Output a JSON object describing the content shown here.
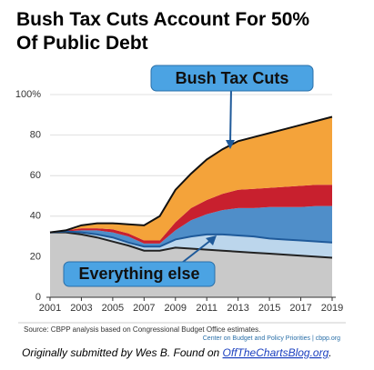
{
  "chart_data": {
    "type": "stacked_area",
    "title_lines": [
      "Bush Tax Cuts Account For 50%",
      "Of Public Debt"
    ],
    "x": [
      2001,
      2002,
      2003,
      2004,
      2005,
      2006,
      2007,
      2008,
      2009,
      2010,
      2011,
      2012,
      2013,
      2014,
      2015,
      2016,
      2017,
      2018,
      2019
    ],
    "xlim": [
      2001,
      2019
    ],
    "xticks": [
      2001,
      2003,
      2005,
      2007,
      2009,
      2011,
      2013,
      2015,
      2017,
      2019
    ],
    "ylim": [
      0,
      100
    ],
    "yticks": [
      0,
      20,
      40,
      60,
      {
        "value": 80,
        "label": "80"
      },
      {
        "value": 100,
        "label": "100%"
      }
    ],
    "grid": true,
    "series": [
      {
        "color": "#c9c9c9",
        "line_color": "#222222",
        "values": [
          32,
          32,
          31,
          29.5,
          27.5,
          25.5,
          23,
          23,
          24.5,
          24,
          23.5,
          23,
          22.5,
          22,
          21.5,
          21,
          20.5,
          20,
          19.5
        ]
      },
      {
        "color": "#bcd6ec",
        "line_color": "#1f5a9a",
        "values": [
          0,
          0.5,
          1,
          1.5,
          2,
          1.5,
          2,
          2,
          4,
          6,
          7.5,
          8,
          8,
          8,
          7.5,
          7.5,
          7.5,
          7.5,
          7.5
        ]
      },
      {
        "color": "#4f8ec9",
        "values": [
          0,
          0,
          1,
          2,
          2.5,
          3,
          1.5,
          1.5,
          4.5,
          8,
          10,
          12,
          13.5,
          14,
          15.5,
          16,
          16.5,
          17.5,
          18
        ]
      },
      {
        "color": "#c8202e",
        "values": [
          0,
          0.5,
          1,
          1,
          1.5,
          1.5,
          1.5,
          1.5,
          4,
          6,
          7,
          8,
          9,
          9.5,
          9.5,
          10,
          10.5,
          10.5,
          10.5
        ]
      },
      {
        "color": "#f4a33a",
        "line_color": "#111111",
        "values": [
          0,
          0,
          1.5,
          2.5,
          3,
          4.5,
          7.5,
          12,
          16,
          17,
          20,
          22,
          24,
          25.5,
          27,
          28.5,
          30,
          31.5,
          33.5
        ]
      }
    ],
    "annotations": [
      "Bush Tax Cuts",
      "Everything else"
    ],
    "source": "Source:  CBPP analysis based on Congressional Budget Office estimates.",
    "credit": "Center on Budget and Policy Priorities | cbpp.org",
    "footer": {
      "text": "Originally submitted by Wes B. Found on ",
      "link": "OffTheChartsBlog.org",
      "end": "."
    }
  }
}
